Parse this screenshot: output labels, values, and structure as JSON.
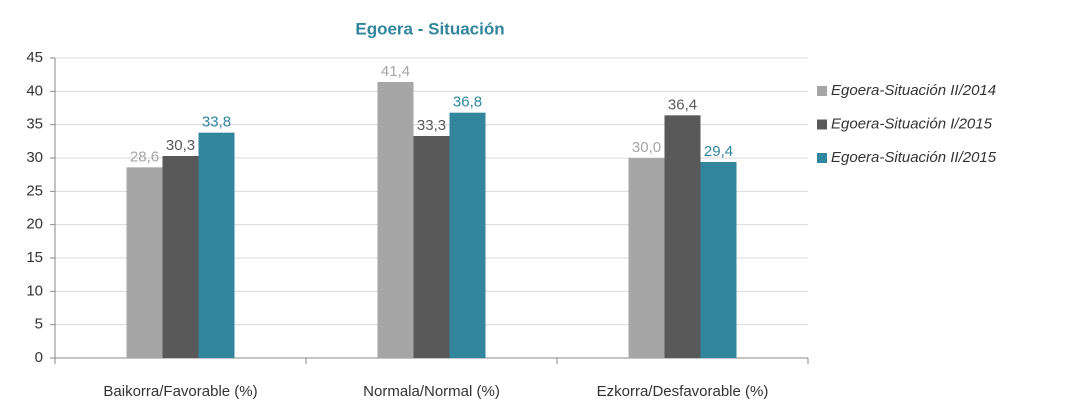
{
  "chart_data": {
    "type": "bar",
    "title": "Egoera - Situación",
    "categories": [
      "Baikorra/Favorable (%)",
      "Normala/Normal (%)",
      "Ezkorra/Desfavorable (%)"
    ],
    "series": [
      {
        "name": "Egoera-Situación II/2014",
        "color": "#a6a6a6",
        "values": [
          28.6,
          41.4,
          30.0
        ],
        "value_labels": [
          "28,6",
          "41,4",
          "30,0"
        ]
      },
      {
        "name": "Egoera-Situación I/2015",
        "color": "#595959",
        "values": [
          30.3,
          33.3,
          36.4
        ],
        "value_labels": [
          "30,3",
          "33,3",
          "36,4"
        ]
      },
      {
        "name": "Egoera-Situación II/2015",
        "color": "#31859c",
        "values": [
          33.8,
          36.8,
          29.4
        ],
        "value_labels": [
          "33,8",
          "36,8",
          "29,4"
        ]
      }
    ],
    "ylim": [
      0,
      45
    ],
    "yticks": [
      0,
      5,
      10,
      15,
      20,
      25,
      30,
      35,
      40,
      45
    ],
    "grid": true,
    "legend": "right"
  }
}
